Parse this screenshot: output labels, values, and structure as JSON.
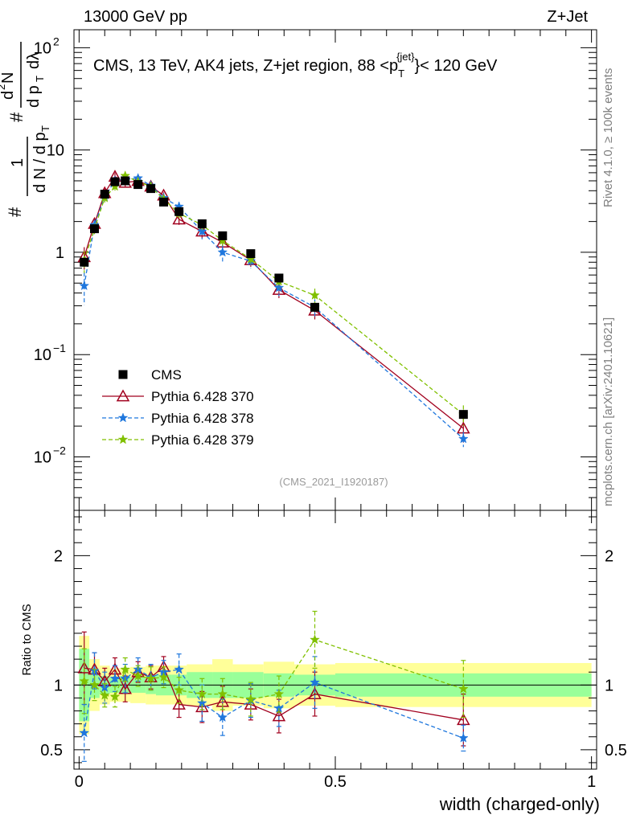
{
  "header": {
    "left": "13000 GeV pp",
    "right": "Z+Jet"
  },
  "side_labels": {
    "rivet": "Rivet 4.1.0, ≥ 100k events",
    "mcplots": "mcplots.cern.ch [arXiv:2401.10621]"
  },
  "chart_data": {
    "type": "line",
    "title": "CMS, 13 TeV, AK4 jets, Z+jet region, 88 <p_T^{jet}< 120 GeV",
    "title_main": "CMS, 13 TeV, AK4 jets, Z+jet region, 88 <p",
    "title_sub": "T",
    "title_sup": "{jet}",
    "title_tail": "}< 120 GeV",
    "watermark": "(CMS_2021_I1920187)",
    "xlabel": "width (charged-only)",
    "ylabel_main": "1/dN/dp_T d^2N/dp_T dλ",
    "ylabel_ratio": "Ratio to CMS",
    "xlim": [
      -0.01,
      1.01
    ],
    "main_ylim": [
      0.003,
      150
    ],
    "ratio_ylim": [
      0.35,
      2.35
    ],
    "x_ticks": [
      {
        "value": 0,
        "label": "0"
      },
      {
        "value": 0.5,
        "label": "0.5"
      },
      {
        "value": 1,
        "label": "1"
      }
    ],
    "main_y_ticks": [
      {
        "value": 0.01,
        "label": "10",
        "exp": "−2"
      },
      {
        "value": 0.1,
        "label": "10",
        "exp": "−1"
      },
      {
        "value": 1,
        "label": "1",
        "exp": ""
      },
      {
        "value": 10,
        "label": "10",
        "exp": ""
      },
      {
        "value": 100,
        "label": "10",
        "exp": "2"
      }
    ],
    "ratio_y_ticks": [
      {
        "value": 0.5,
        "label": "0.5"
      },
      {
        "value": 1,
        "label": "1"
      },
      {
        "value": 2,
        "label": "2"
      }
    ],
    "x_edges": [
      0.0,
      0.02,
      0.04,
      0.06,
      0.08,
      0.1,
      0.13,
      0.15,
      0.18,
      0.21,
      0.26,
      0.3,
      0.36,
      0.42,
      0.5,
      1.0
    ],
    "x_centers": [
      0.01,
      0.03,
      0.05,
      0.07,
      0.09,
      0.115,
      0.14,
      0.165,
      0.195,
      0.24,
      0.28,
      0.335,
      0.39,
      0.46,
      0.75
    ],
    "cms": [
      0.8,
      1.7,
      3.7,
      4.9,
      5.0,
      4.6,
      4.2,
      3.1,
      2.5,
      1.9,
      1.45,
      0.97,
      0.56,
      0.29,
      0.026
    ],
    "band_stat": [
      0.28,
      0.1,
      0.07,
      0.06,
      0.07,
      0.06,
      0.07,
      0.08,
      0.08,
      0.1,
      0.1,
      0.1,
      0.09,
      0.08,
      0.09
    ],
    "band_total": [
      0.38,
      0.2,
      0.15,
      0.13,
      0.13,
      0.14,
      0.15,
      0.15,
      0.15,
      0.16,
      0.2,
      0.16,
      0.18,
      0.16,
      0.17
    ],
    "band_colors": {
      "stat": "#99ff99",
      "total": "#ffff99"
    },
    "series": [
      {
        "name": "Pythia 6.428 370",
        "color": "#a1001e",
        "marker": "triangle",
        "dash": "solid",
        "values": [
          0.9,
          1.9,
          3.8,
          5.5,
          4.8,
          5.0,
          4.4,
          3.6,
          2.1,
          1.6,
          1.25,
          0.84,
          0.43,
          0.27,
          0.019
        ],
        "ratio": [
          1.13,
          1.12,
          1.03,
          1.12,
          0.97,
          1.1,
          1.06,
          1.14,
          0.85,
          0.83,
          0.87,
          0.85,
          0.76,
          0.93,
          0.73
        ],
        "ratio_err": [
          0.28,
          0.13,
          0.1,
          0.09,
          0.1,
          0.08,
          0.09,
          0.08,
          0.1,
          0.12,
          0.12,
          0.12,
          0.13,
          0.17,
          0.2
        ]
      },
      {
        "name": "Pythia 6.428 378",
        "color": "#1f77dd",
        "marker": "star",
        "dash": "dashed",
        "values": [
          0.47,
          1.85,
          3.5,
          5.0,
          5.2,
          5.3,
          4.5,
          3.4,
          2.8,
          1.6,
          1.0,
          0.82,
          0.45,
          0.29,
          0.015
        ],
        "ratio": [
          0.63,
          1.11,
          0.98,
          1.05,
          1.05,
          1.12,
          1.06,
          1.1,
          1.12,
          0.86,
          0.75,
          0.88,
          0.82,
          1.02,
          0.59
        ],
        "ratio_err": [
          0.22,
          0.14,
          0.12,
          0.1,
          0.11,
          0.09,
          0.1,
          0.09,
          0.12,
          0.14,
          0.14,
          0.13,
          0.14,
          0.2,
          0.1
        ]
      },
      {
        "name": "Pythia 6.428 379",
        "color": "#80c000",
        "marker": "star",
        "dash": "dashed",
        "values": [
          0.83,
          1.7,
          3.4,
          4.4,
          5.6,
          4.9,
          4.4,
          3.3,
          2.4,
          1.85,
          1.3,
          0.86,
          0.52,
          0.38,
          0.026
        ],
        "ratio": [
          1.03,
          1.0,
          0.92,
          0.91,
          1.12,
          1.07,
          1.05,
          1.06,
          0.96,
          0.93,
          0.93,
          0.89,
          0.93,
          1.35,
          0.97
        ],
        "ratio_err": [
          0.25,
          0.12,
          0.09,
          0.08,
          0.09,
          0.08,
          0.09,
          0.08,
          0.1,
          0.12,
          0.12,
          0.13,
          0.14,
          0.22,
          0.22
        ]
      }
    ],
    "legend": [
      {
        "name": "CMS",
        "marker": "square",
        "color": "#000000"
      },
      {
        "name": "Pythia 6.428 370",
        "marker": "triangle",
        "color": "#a1001e"
      },
      {
        "name": "Pythia 6.428 378",
        "marker": "star",
        "color": "#1f77dd"
      },
      {
        "name": "Pythia 6.428 379",
        "marker": "star",
        "color": "#80c000"
      }
    ]
  }
}
